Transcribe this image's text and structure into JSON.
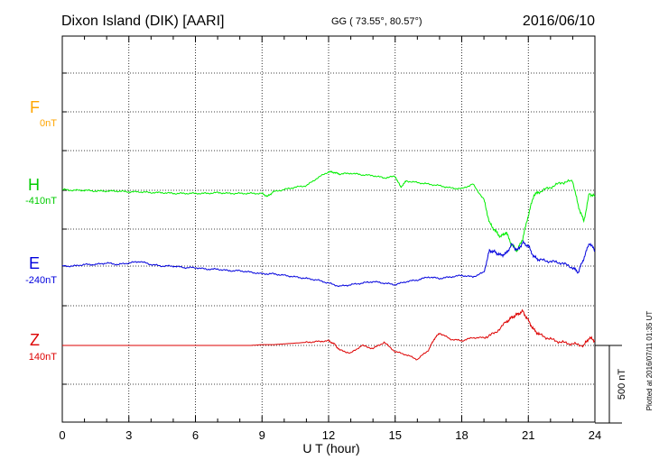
{
  "header": {
    "title": "Dixon Island (DIK)  [AARI]",
    "coords": "GG ( 73.55°,  80.57°)",
    "date": "2016/06/10"
  },
  "scale_label": "500 nT",
  "plotted_label": "Plotted at 2016/07/11 01:35 UT",
  "colors": {
    "F": "#ffa500",
    "H": "#00ee00",
    "E": "#0000dd",
    "Z": "#dd0000",
    "grid": "#000000"
  },
  "components": [
    {
      "key": "F",
      "label": "F",
      "baseline": "0nT"
    },
    {
      "key": "H",
      "label": "H",
      "baseline": "-410nT"
    },
    {
      "key": "E",
      "label": "E",
      "baseline": "-240nT"
    },
    {
      "key": "Z",
      "label": "Z",
      "baseline": "140nT"
    }
  ],
  "chart_data": {
    "type": "line",
    "xlabel": "U T (hour)",
    "xlim": [
      0,
      24
    ],
    "xticks": [
      "0",
      "3",
      "6",
      "9",
      "12",
      "15",
      "18",
      "21",
      "24"
    ],
    "y_unit": "nT",
    "scale_bar_nT": 500,
    "series": [
      {
        "name": "H",
        "baseline_nT": -410,
        "x": [
          0,
          0.5,
          1,
          1.5,
          2,
          2.5,
          3,
          3.5,
          4,
          4.5,
          5,
          5.5,
          6,
          6.5,
          7,
          7.5,
          8,
          8.5,
          9,
          9.25,
          9.5,
          10,
          10.5,
          11,
          11.5,
          12,
          12.25,
          12.5,
          13,
          13.5,
          14,
          14.5,
          15,
          15.25,
          15.5,
          16,
          16.5,
          17,
          17.5,
          18,
          18.5,
          19,
          19.25,
          19.5,
          19.75,
          20,
          20.25,
          20.5,
          20.75,
          21,
          21.25,
          21.5,
          22,
          22.5,
          23,
          23.25,
          23.5,
          23.75,
          24
        ],
        "values": [
          5,
          0,
          0,
          -5,
          -5,
          -5,
          -10,
          -10,
          -15,
          -15,
          -20,
          -20,
          -20,
          -20,
          -15,
          -20,
          -20,
          -20,
          -20,
          -40,
          -10,
          5,
          20,
          30,
          80,
          120,
          115,
          105,
          110,
          100,
          95,
          80,
          90,
          20,
          60,
          50,
          40,
          30,
          15,
          10,
          40,
          -60,
          -210,
          -260,
          -300,
          -270,
          -350,
          -390,
          -310,
          -160,
          -30,
          -10,
          20,
          50,
          60,
          -100,
          -200,
          -20,
          -40
        ]
      },
      {
        "name": "E",
        "baseline_nT": -240,
        "x": [
          0,
          0.5,
          1,
          1.5,
          2,
          2.5,
          3,
          3.5,
          4,
          4.5,
          5,
          5.5,
          6,
          6.5,
          7,
          7.5,
          8,
          8.5,
          9,
          9.5,
          10,
          10.5,
          11,
          11.5,
          12,
          12.5,
          13,
          13.5,
          14,
          14.5,
          15,
          15.5,
          16,
          16.5,
          17,
          17.5,
          18,
          18.5,
          19,
          19.25,
          19.5,
          19.75,
          20,
          20.25,
          20.5,
          20.75,
          21,
          21.25,
          21.5,
          22,
          22.5,
          23,
          23.25,
          23.5,
          23.75,
          24
        ],
        "values": [
          0,
          0,
          10,
          10,
          20,
          10,
          20,
          30,
          10,
          0,
          0,
          -10,
          -10,
          -20,
          -20,
          -30,
          -30,
          -40,
          -50,
          -50,
          -60,
          -70,
          -80,
          -90,
          -110,
          -130,
          -120,
          -110,
          -100,
          -110,
          -120,
          -100,
          -90,
          -70,
          -80,
          -70,
          -60,
          -70,
          -40,
          100,
          90,
          70,
          80,
          140,
          100,
          150,
          130,
          60,
          40,
          30,
          20,
          -10,
          -40,
          50,
          150,
          100
        ]
      },
      {
        "name": "Z",
        "baseline_nT": 140,
        "x": [
          0,
          0.5,
          1,
          1.5,
          2,
          2.5,
          3,
          3.5,
          4,
          4.5,
          5,
          5.5,
          6,
          6.5,
          7,
          7.5,
          8,
          8.5,
          9,
          9.5,
          10,
          10.5,
          11,
          11.5,
          12,
          12.25,
          12.5,
          13,
          13.5,
          14,
          14.5,
          15,
          15.5,
          16,
          16.5,
          16.75,
          17,
          17.5,
          18,
          18.5,
          19,
          19.5,
          20,
          20.25,
          20.5,
          20.75,
          21,
          21.25,
          21.5,
          22,
          22.5,
          23,
          23.5,
          23.75,
          24
        ],
        "values": [
          0,
          0,
          0,
          0,
          0,
          0,
          0,
          0,
          0,
          0,
          0,
          0,
          0,
          0,
          0,
          0,
          0,
          0,
          5,
          5,
          10,
          15,
          20,
          25,
          30,
          10,
          -30,
          -50,
          0,
          -20,
          20,
          -40,
          -60,
          -90,
          -30,
          40,
          80,
          40,
          30,
          50,
          50,
          80,
          150,
          180,
          200,
          220,
          160,
          100,
          70,
          40,
          20,
          10,
          0,
          50,
          30
        ]
      }
    ]
  }
}
